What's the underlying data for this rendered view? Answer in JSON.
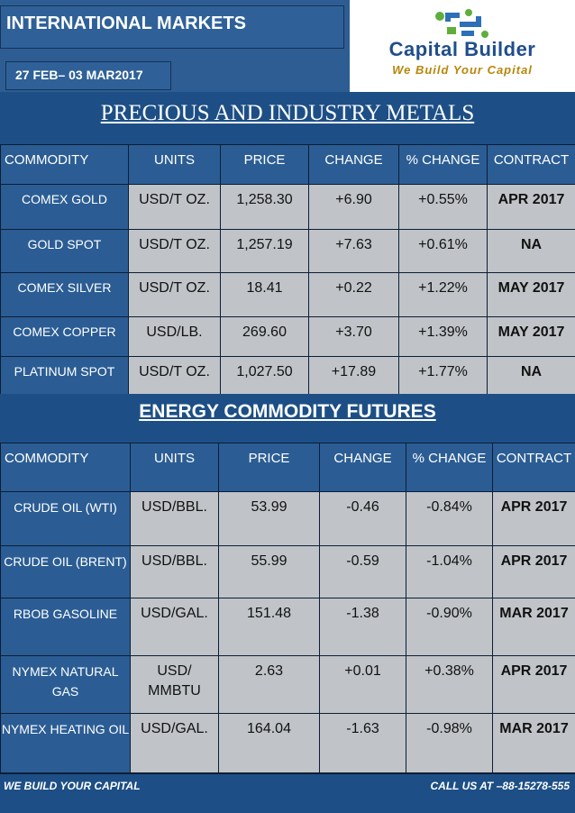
{
  "header": {
    "title": "INTERNATIONAL MARKETS",
    "date_range": "27 FEB– 03 MAR2017",
    "logo": {
      "name": "Capital Builder",
      "tagline": "We Build Your Capital",
      "colors": {
        "name": "#1f4e8c",
        "tagline": "#b8860b",
        "mark_blue": "#2d6fb8",
        "mark_green": "#5fae3c"
      }
    }
  },
  "metals": {
    "heading": "PRECIOUS AND INDUSTRY METALS",
    "columns": [
      "COMMODITY",
      "UNITS",
      "PRICE",
      "CHANGE",
      "% CHANGE",
      "CONTRACT"
    ],
    "rows": [
      {
        "commodity": "COMEX GOLD",
        "units": "USD/T OZ.",
        "price": "1,258.30",
        "change": "+6.90",
        "pct_change": "+0.55%",
        "contract": "APR 2017"
      },
      {
        "commodity": "GOLD SPOT",
        "units": "USD/T OZ.",
        "price": "1,257.19",
        "change": "+7.63",
        "pct_change": "+0.61%",
        "contract": "NA"
      },
      {
        "commodity": "COMEX SILVER",
        "units": "USD/T OZ.",
        "price": "18.41",
        "change": "+0.22",
        "pct_change": "+1.22%",
        "contract": "MAY  2017"
      },
      {
        "commodity": "COMEX COPPER",
        "units": "USD/LB.",
        "price": "269.60",
        "change": "+3.70",
        "pct_change": "+1.39%",
        "contract": "MAY 2017"
      },
      {
        "commodity": "PLATINUM SPOT",
        "units": "USD/T OZ.",
        "price": "1,027.50",
        "change": "+17.89",
        "pct_change": "+1.77%",
        "contract": "NA"
      }
    ]
  },
  "energy": {
    "heading": "ENERGY COMMODITY FUTURES",
    "columns": [
      "COMMODITY",
      "UNITS",
      "PRICE",
      "CHANGE",
      "% CHANGE",
      "CONTRACT"
    ],
    "rows": [
      {
        "commodity": "CRUDE OIL (WTI)",
        "units": "USD/BBL.",
        "price": "53.99",
        "change": "-0.46",
        "pct_change": "-0.84%",
        "contract": "APR 2017"
      },
      {
        "commodity": "CRUDE OIL (BRENT)",
        "units": "USD/BBL.",
        "price": "55.99",
        "change": "-0.59",
        "pct_change": "-1.04%",
        "contract": "APR 2017"
      },
      {
        "commodity": "RBOB GASOLINE",
        "units": "USD/GAL.",
        "price": "151.48",
        "change": "-1.38",
        "pct_change": "-0.90%",
        "contract": "MAR 2017"
      },
      {
        "commodity": "NYMEX NATURAL GAS",
        "units": "USD/ MMBTU",
        "price": "2.63",
        "change": "+0.01",
        "pct_change": "+0.38%",
        "contract": "APR 2017"
      },
      {
        "commodity": "NYMEX HEATING OIL",
        "units": "USD/GAL.",
        "price": "164.04",
        "change": "-1.63",
        "pct_change": "-0.98%",
        "contract": "MAR 2017"
      }
    ]
  },
  "footer": {
    "left": "WE BUILD YOUR CAPITAL",
    "right": "CALL US AT –88-15278-555"
  }
}
